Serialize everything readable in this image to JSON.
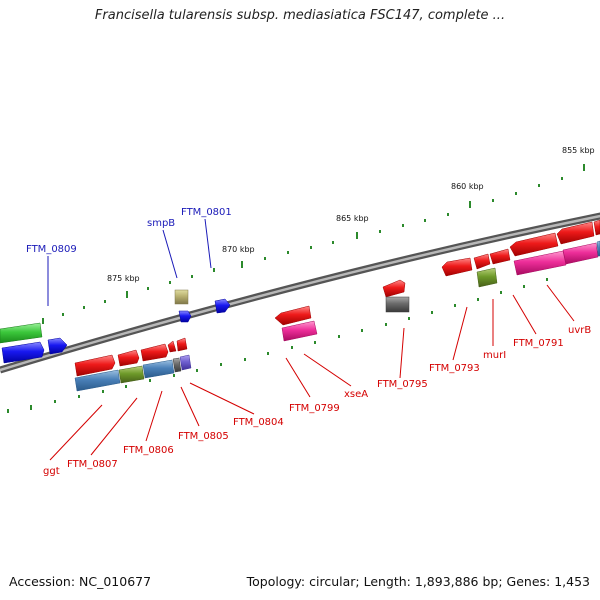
{
  "title": "Francisella tularensis subsp. mediasiatica FSC147, complete ...",
  "footer": {
    "accession": "Accession: NC_010677",
    "summary": "Topology: circular; Length: 1,893,886 bp; Genes: 1,453"
  },
  "scale_labels": [
    "855 kbp",
    "860 kbp",
    "865 kbp",
    "870 kbp",
    "875 kbp"
  ],
  "gene_labels": {
    "blue": [
      "FTM_0809",
      "smpB",
      "FTM_0801"
    ],
    "red": [
      "ggt",
      "FTM_0807",
      "FTM_0806",
      "FTM_0805",
      "FTM_0804",
      "FTM_0799",
      "xseA",
      "FTM_0795",
      "FTM_0793",
      "murI",
      "FTM_0791",
      "uvrB"
    ]
  },
  "colors": {
    "backbone": "#8a8a8a",
    "forward_cds": "#e81010",
    "reverse_cds": "#1010e0",
    "scale_ticks": "#2c8a2c",
    "label_red": "#d40000",
    "label_blue": "#1a1ab8"
  }
}
